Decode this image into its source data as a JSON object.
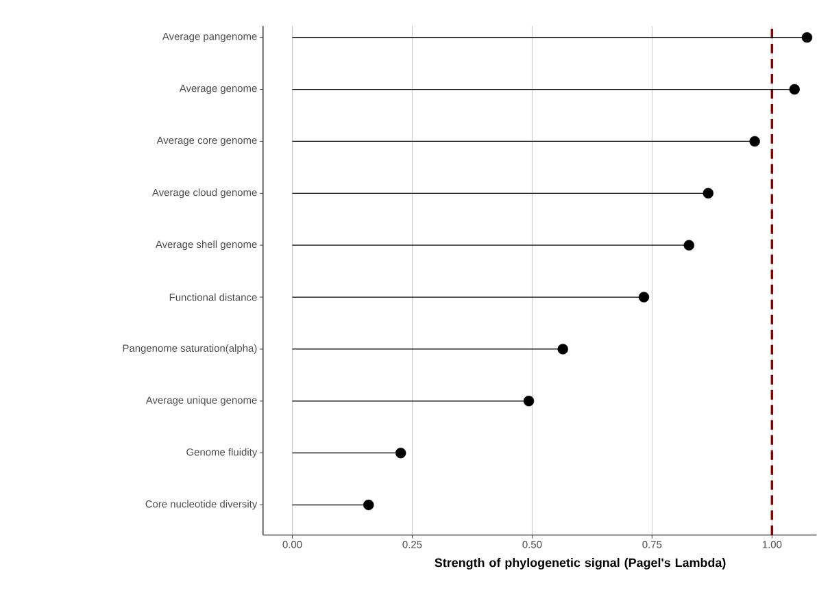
{
  "chart_data": {
    "type": "lollipop",
    "orientation": "horizontal",
    "categories": [
      "Average pangenome",
      "Average genome",
      "Average core genome",
      "Average cloud genome",
      "Average shell genome",
      "Functional distance",
      "Pangenome saturation(alpha)",
      "Average unique genome",
      "Genome fluidity",
      "Core nucleotide diversity"
    ],
    "values": [
      1.073,
      1.047,
      0.964,
      0.867,
      0.827,
      0.733,
      0.564,
      0.493,
      0.226,
      0.159
    ],
    "color": "#000000",
    "marker": "circle",
    "xlabel": "Strength of phylogenetic signal (Pagel's Lambda)",
    "xlim": [
      -0.061,
      1.093
    ],
    "xticks": [
      {
        "value": 0,
        "label": "0.00"
      },
      {
        "value": 0.25,
        "label": "0.25"
      },
      {
        "value": 0.5,
        "label": "0.50"
      },
      {
        "value": 0.75,
        "label": "0.75"
      },
      {
        "value": 1,
        "label": "1.00"
      }
    ],
    "grid": "x",
    "ref_lines": [
      {
        "axis": "x",
        "value": 1,
        "color": "#8b0000",
        "line_style": "dashed"
      }
    ]
  }
}
